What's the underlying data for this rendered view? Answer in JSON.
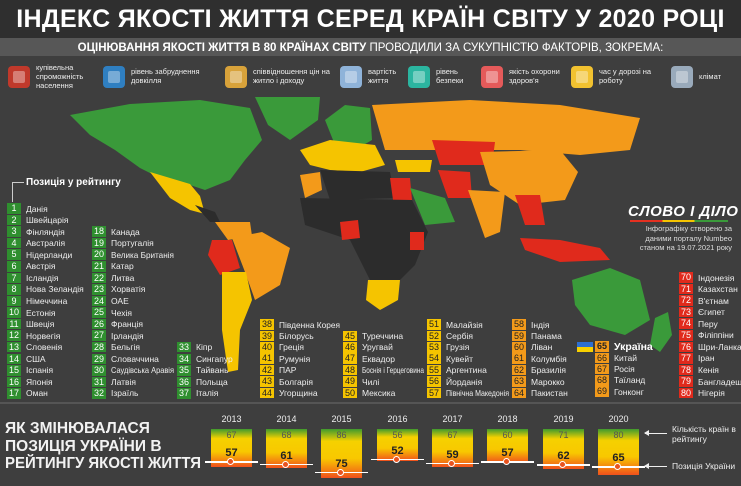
{
  "title": "ІНДЕКС ЯКОСТІ ЖИТТЯ СЕРЕД КРАЇН СВІТУ У 2020 РОЦІ",
  "subtitle": {
    "bold": "ОЦІНЮВАННЯ ЯКОСТІ ЖИТТЯ В 80 КРАЇНАХ СВІТУ",
    "rest": " ПРОВОДИЛИ ЗА СУКУПНІСТЮ ФАКТОРІВ, ЗОКРЕМА:"
  },
  "factors": [
    {
      "label": "купівельна спроможність населення",
      "icon": "shopping-basket-icon"
    },
    {
      "label": "рівень забруднення довкілля",
      "icon": "pollution-mask-icon"
    },
    {
      "label": "співвідношення цін на житло і доходу",
      "icon": "house-price-icon"
    },
    {
      "label": "вартість життя",
      "icon": "cost-of-living-icon"
    },
    {
      "label": "рівень безпеки",
      "icon": "shield-check-icon"
    },
    {
      "label": "якість охорони здоров'я",
      "icon": "heart-health-icon"
    },
    {
      "label": "час у дорозі на роботу",
      "icon": "commute-car-icon"
    },
    {
      "label": "клімат",
      "icon": "climate-icon"
    }
  ],
  "colors": {
    "green": "#2f8f2f",
    "yellow": "#f5c400",
    "orange": "#f39a1a",
    "red": "#e02a1c",
    "dark": "#2c2c2c"
  },
  "ranking": {
    "title": "Позиція у рейтингу",
    "items": [
      {
        "rank": "1",
        "country": "Данія",
        "tier": "green"
      },
      {
        "rank": "2",
        "country": "Швейцарія",
        "tier": "green"
      },
      {
        "rank": "3",
        "country": "Фінляндія",
        "tier": "green"
      },
      {
        "rank": "4",
        "country": "Австралія",
        "tier": "green"
      },
      {
        "rank": "5",
        "country": "Нідерланди",
        "tier": "green"
      },
      {
        "rank": "6",
        "country": "Австрія",
        "tier": "green"
      },
      {
        "rank": "7",
        "country": "Ісландія",
        "tier": "green"
      },
      {
        "rank": "8",
        "country": "Нова Зеландія",
        "tier": "green"
      },
      {
        "rank": "9",
        "country": "Німеччина",
        "tier": "green"
      },
      {
        "rank": "10",
        "country": "Естонія",
        "tier": "green"
      },
      {
        "rank": "11",
        "country": "Швеція",
        "tier": "green"
      },
      {
        "rank": "12",
        "country": "Норвегія",
        "tier": "green"
      },
      {
        "rank": "13",
        "country": "Словенія",
        "tier": "green"
      },
      {
        "rank": "14",
        "country": "США",
        "tier": "green"
      },
      {
        "rank": "15",
        "country": "Іспанія",
        "tier": "green"
      },
      {
        "rank": "16",
        "country": "Японія",
        "tier": "green"
      },
      {
        "rank": "17",
        "country": "Оман",
        "tier": "green"
      },
      {
        "rank": "18",
        "country": "Канада",
        "tier": "green"
      },
      {
        "rank": "19",
        "country": "Португалія",
        "tier": "green"
      },
      {
        "rank": "20",
        "country": "Велика Британія",
        "tier": "green"
      },
      {
        "rank": "21",
        "country": "Катар",
        "tier": "green"
      },
      {
        "rank": "22",
        "country": "Литва",
        "tier": "green"
      },
      {
        "rank": "23",
        "country": "Хорватія",
        "tier": "green"
      },
      {
        "rank": "24",
        "country": "ОАЕ",
        "tier": "green"
      },
      {
        "rank": "25",
        "country": "Чехія",
        "tier": "green"
      },
      {
        "rank": "26",
        "country": "Франція",
        "tier": "green"
      },
      {
        "rank": "27",
        "country": "Ірландія",
        "tier": "green"
      },
      {
        "rank": "28",
        "country": "Бельгія",
        "tier": "green"
      },
      {
        "rank": "29",
        "country": "Словаччина",
        "tier": "green"
      },
      {
        "rank": "30",
        "country": "Саудівська Аравія",
        "tier": "green"
      },
      {
        "rank": "31",
        "country": "Латвія",
        "tier": "green"
      },
      {
        "rank": "32",
        "country": "Ізраїль",
        "tier": "green"
      },
      {
        "rank": "33",
        "country": "Кіпр",
        "tier": "green"
      },
      {
        "rank": "34",
        "country": "Сингапур",
        "tier": "green"
      },
      {
        "rank": "35",
        "country": "Тайвань",
        "tier": "green"
      },
      {
        "rank": "36",
        "country": "Польща",
        "tier": "green"
      },
      {
        "rank": "37",
        "country": "Італія",
        "tier": "green"
      },
      {
        "rank": "38",
        "country": "Південна Корея",
        "tier": "yellow"
      },
      {
        "rank": "39",
        "country": "Білорусь",
        "tier": "yellow"
      },
      {
        "rank": "40",
        "country": "Греція",
        "tier": "yellow"
      },
      {
        "rank": "41",
        "country": "Румунія",
        "tier": "yellow"
      },
      {
        "rank": "42",
        "country": "ПАР",
        "tier": "yellow"
      },
      {
        "rank": "43",
        "country": "Болгарія",
        "tier": "yellow"
      },
      {
        "rank": "44",
        "country": "Угорщина",
        "tier": "yellow"
      },
      {
        "rank": "45",
        "country": "Туреччина",
        "tier": "yellow"
      },
      {
        "rank": "46",
        "country": "Уругвай",
        "tier": "yellow"
      },
      {
        "rank": "47",
        "country": "Еквадор",
        "tier": "yellow"
      },
      {
        "rank": "48",
        "country": "Боснія і Герцеговина",
        "tier": "yellow"
      },
      {
        "rank": "49",
        "country": "Чилі",
        "tier": "yellow"
      },
      {
        "rank": "50",
        "country": "Мексика",
        "tier": "yellow"
      },
      {
        "rank": "51",
        "country": "Малайзія",
        "tier": "yellow"
      },
      {
        "rank": "52",
        "country": "Сербія",
        "tier": "yellow"
      },
      {
        "rank": "53",
        "country": "Грузія",
        "tier": "yellow"
      },
      {
        "rank": "54",
        "country": "Кувейт",
        "tier": "yellow"
      },
      {
        "rank": "55",
        "country": "Аргентина",
        "tier": "yellow"
      },
      {
        "rank": "56",
        "country": "Йорданія",
        "tier": "yellow"
      },
      {
        "rank": "57",
        "country": "Північна Македонія",
        "tier": "yellow"
      },
      {
        "rank": "58",
        "country": "Індія",
        "tier": "orange"
      },
      {
        "rank": "59",
        "country": "Панама",
        "tier": "orange"
      },
      {
        "rank": "60",
        "country": "Ліван",
        "tier": "orange"
      },
      {
        "rank": "61",
        "country": "Колумбія",
        "tier": "orange"
      },
      {
        "rank": "62",
        "country": "Бразилія",
        "tier": "orange"
      },
      {
        "rank": "63",
        "country": "Марокко",
        "tier": "orange"
      },
      {
        "rank": "64",
        "country": "Пакистан",
        "tier": "orange"
      },
      {
        "rank": "65",
        "country": "Україна",
        "tier": "orange"
      },
      {
        "rank": "66",
        "country": "Китай",
        "tier": "orange"
      },
      {
        "rank": "67",
        "country": "Росія",
        "tier": "orange"
      },
      {
        "rank": "68",
        "country": "Таїланд",
        "tier": "orange"
      },
      {
        "rank": "69",
        "country": "Гонконг",
        "tier": "orange"
      },
      {
        "rank": "70",
        "country": "Індонезія",
        "tier": "red"
      },
      {
        "rank": "71",
        "country": "Казахстан",
        "tier": "red"
      },
      {
        "rank": "72",
        "country": "В'єтнам",
        "tier": "red"
      },
      {
        "rank": "73",
        "country": "Єгипет",
        "tier": "red"
      },
      {
        "rank": "74",
        "country": "Перу",
        "tier": "red"
      },
      {
        "rank": "75",
        "country": "Філіппіни",
        "tier": "red"
      },
      {
        "rank": "76",
        "country": "Шри-Ланка",
        "tier": "red"
      },
      {
        "rank": "77",
        "country": "Іран",
        "tier": "red"
      },
      {
        "rank": "78",
        "country": "Кенія",
        "tier": "red"
      },
      {
        "rank": "79",
        "country": "Бангладеш",
        "tier": "red"
      },
      {
        "rank": "80",
        "country": "Нігерія",
        "tier": "red"
      }
    ]
  },
  "brand": {
    "logo": "СЛОВО І ДІЛО",
    "credit": "Інфографіку створено за даними порталу Numbeo станом на 19.07.2021 року"
  },
  "history": {
    "title_lines": [
      "ЯК ЗМІНЮВАЛАСЯ",
      "ПОЗИЦІЯ УКРАЇНИ В",
      "РЕЙТИНГУ ЯКОСТІ ЖИТТЯ"
    ],
    "legend_count": "Кількість країн в рейтингу",
    "legend_position": "Позиція України",
    "years": [
      {
        "year": "2013",
        "count": 67,
        "position": 57
      },
      {
        "year": "2014",
        "count": 68,
        "position": 61
      },
      {
        "year": "2015",
        "count": 86,
        "position": 75
      },
      {
        "year": "2016",
        "count": 56,
        "position": 52
      },
      {
        "year": "2017",
        "count": 67,
        "position": 59
      },
      {
        "year": "2018",
        "count": 60,
        "position": 57
      },
      {
        "year": "2019",
        "count": 71,
        "position": 62
      },
      {
        "year": "2020",
        "count": 80,
        "position": 65
      }
    ]
  }
}
